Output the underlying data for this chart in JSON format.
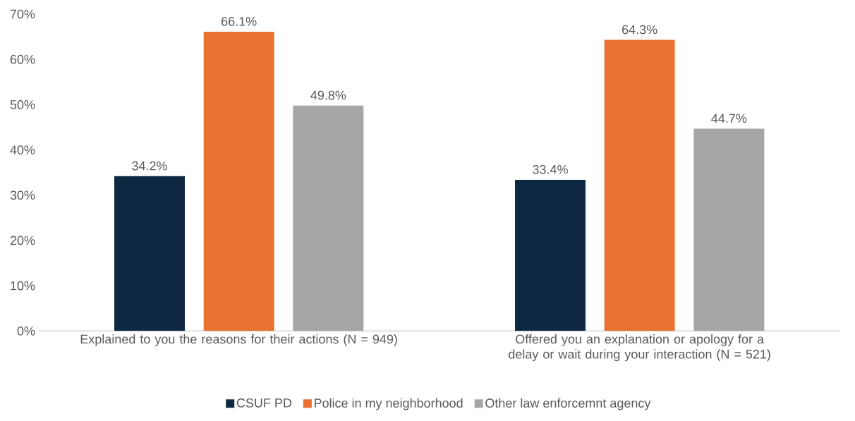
{
  "chart_data": {
    "type": "bar",
    "categories": [
      "Explained to you the reasons for their actions (N = 949)",
      "Offered you an explanation or apology for a delay or wait during your interaction (N = 521)"
    ],
    "series": [
      {
        "name": "CSUF PD",
        "color": "#0e2841",
        "values": [
          34.2,
          33.4
        ],
        "value_labels": [
          "34.2%",
          "33.4%"
        ]
      },
      {
        "name": "Police in my neighborhood",
        "color": "#e97132",
        "values": [
          66.1,
          64.3
        ],
        "value_labels": [
          "66.1%",
          "64.3%"
        ]
      },
      {
        "name": "Other law enforcemnt agency",
        "color": "#a6a6a6",
        "values": [
          49.8,
          44.7
        ],
        "value_labels": [
          "49.8%",
          "44.7%"
        ]
      }
    ],
    "ylim": [
      0,
      70
    ],
    "yticks": [
      {
        "value": 0,
        "label": "0%"
      },
      {
        "value": 10,
        "label": "10%"
      },
      {
        "value": 20,
        "label": "20%"
      },
      {
        "value": 30,
        "label": "30%"
      },
      {
        "value": 40,
        "label": "40%"
      },
      {
        "value": 50,
        "label": "50%"
      },
      {
        "value": 60,
        "label": "60%"
      },
      {
        "value": 70,
        "label": "70%"
      }
    ],
    "legend": "bottom"
  }
}
